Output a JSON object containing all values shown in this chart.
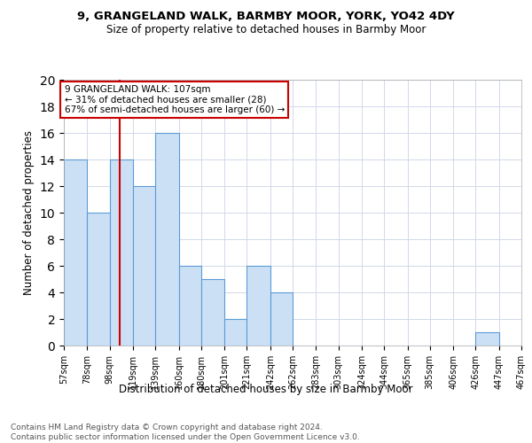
{
  "title": "9, GRANGELAND WALK, BARMBY MOOR, YORK, YO42 4DY",
  "subtitle": "Size of property relative to detached houses in Barmby Moor",
  "xlabel": "Distribution of detached houses by size in Barmby Moor",
  "ylabel": "Number of detached properties",
  "bins": [
    57,
    78,
    98,
    119,
    139,
    160,
    180,
    201,
    221,
    242,
    262,
    283,
    303,
    324,
    344,
    365,
    385,
    406,
    426,
    447,
    467
  ],
  "counts": [
    14,
    10,
    14,
    12,
    16,
    6,
    5,
    2,
    6,
    4,
    0,
    0,
    0,
    0,
    0,
    0,
    0,
    0,
    1,
    0
  ],
  "bar_color": "#cce0f5",
  "bar_edge_color": "#5b9bd5",
  "grid_color": "#d0d8e8",
  "red_line_x": 107,
  "annotation_text1": "9 GRANGELAND WALK: 107sqm",
  "annotation_text2": "← 31% of detached houses are smaller (28)",
  "annotation_text3": "67% of semi-detached houses are larger (60) →",
  "annotation_box_color": "#ffffff",
  "annotation_box_edge": "#cc0000",
  "red_line_color": "#cc0000",
  "footer1": "Contains HM Land Registry data © Crown copyright and database right 2024.",
  "footer2": "Contains public sector information licensed under the Open Government Licence v3.0.",
  "ylim": [
    0,
    20
  ],
  "yticks": [
    0,
    2,
    4,
    6,
    8,
    10,
    12,
    14,
    16,
    18,
    20
  ]
}
